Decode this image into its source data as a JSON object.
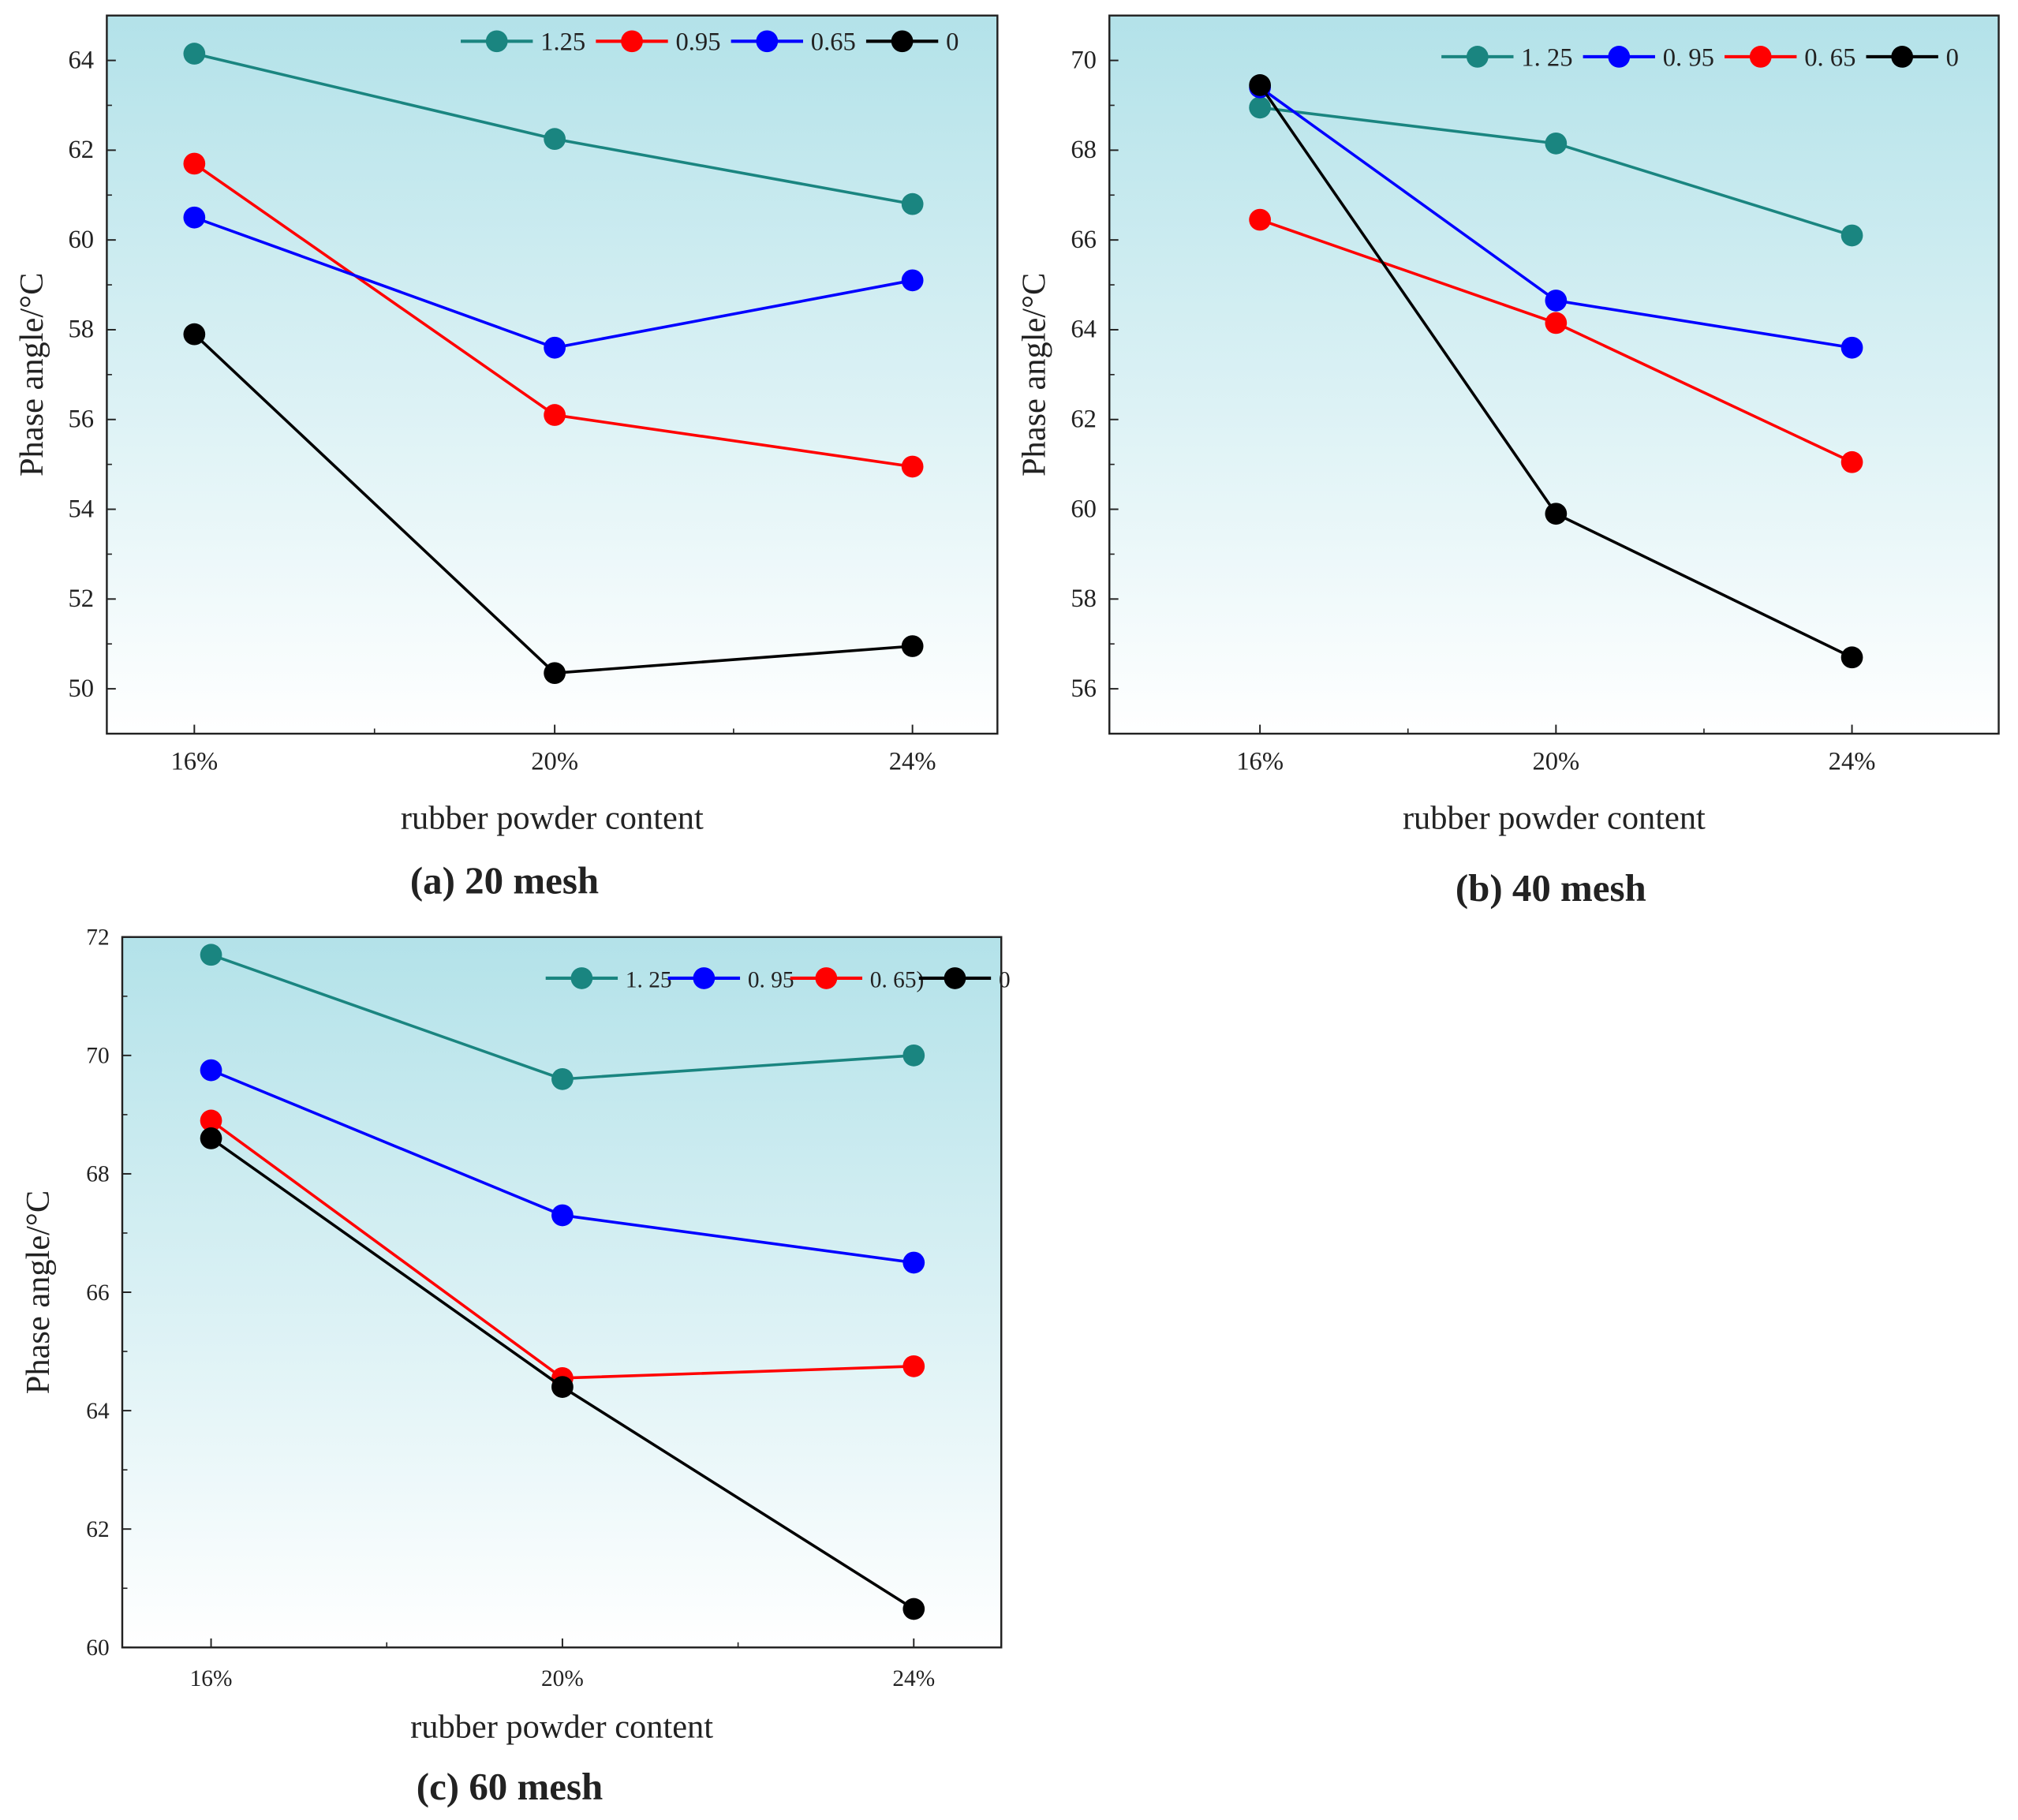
{
  "colors": {
    "1.25": "#1a8580",
    "0.95": "#ff0000",
    "0.65": "#0000ff",
    "0": "#000000",
    "bg_top": "#b3e2e9",
    "bg_bottom": "#ffffff"
  },
  "chart_data": [
    {
      "type": "line",
      "title": "(a) 20 mesh",
      "xlabel": "rubber powder content",
      "ylabel": "Phase angle/°C",
      "categories": [
        "16%",
        "20%",
        "24%"
      ],
      "ylim": [
        49,
        65
      ],
      "yticks": [
        50,
        52,
        54,
        56,
        58,
        60,
        62,
        64
      ],
      "legend_position": "top-right",
      "series": [
        {
          "name": "1.25",
          "color": "#1a8580",
          "values": [
            64.15,
            62.25,
            60.8
          ]
        },
        {
          "name": "0.95",
          "color": "#ff0000",
          "values": [
            61.7,
            56.1,
            54.95
          ]
        },
        {
          "name": "0.65",
          "color": "#0000ff",
          "values": [
            60.5,
            57.6,
            59.1
          ]
        },
        {
          "name": "0",
          "color": "#000000",
          "values": [
            57.9,
            50.35,
            50.95
          ]
        }
      ]
    },
    {
      "type": "line",
      "title": "(b) 40 mesh",
      "xlabel": "rubber powder content",
      "ylabel": "Phase angle/°C",
      "categories": [
        "16%",
        "20%",
        "24%"
      ],
      "ylim": [
        55,
        71
      ],
      "yticks": [
        56,
        58,
        60,
        62,
        64,
        66,
        68,
        70
      ],
      "legend_position": "top-right",
      "series": [
        {
          "name": "1. 25",
          "color": "#1a8580",
          "values": [
            68.95,
            68.15,
            66.1
          ]
        },
        {
          "name": "0. 95",
          "color": "#0000ff",
          "values": [
            69.4,
            64.65,
            63.6
          ]
        },
        {
          "name": "0. 65",
          "color": "#ff0000",
          "values": [
            66.45,
            64.15,
            61.05
          ]
        },
        {
          "name": "0",
          "color": "#000000",
          "values": [
            69.45,
            59.9,
            56.7
          ]
        }
      ]
    },
    {
      "type": "line",
      "title": "(c) 60 mesh",
      "xlabel": "rubber powder content",
      "ylabel": "Phase angle/°C",
      "categories": [
        "16%",
        "20%",
        "24%"
      ],
      "ylim": [
        60,
        72
      ],
      "yticks": [
        60,
        62,
        64,
        66,
        68,
        70,
        72
      ],
      "legend_position": "top-right",
      "series": [
        {
          "name": "1. 25",
          "color": "#1a8580",
          "values": [
            71.7,
            69.6,
            70.0
          ]
        },
        {
          "name": "0. 95",
          "color": "#0000ff",
          "values": [
            69.75,
            67.3,
            66.5
          ]
        },
        {
          "name": "0. 65)",
          "color": "#ff0000",
          "values": [
            68.9,
            64.55,
            64.75
          ]
        },
        {
          "name": "0",
          "color": "#000000",
          "values": [
            68.6,
            64.4,
            60.65
          ]
        }
      ]
    }
  ]
}
